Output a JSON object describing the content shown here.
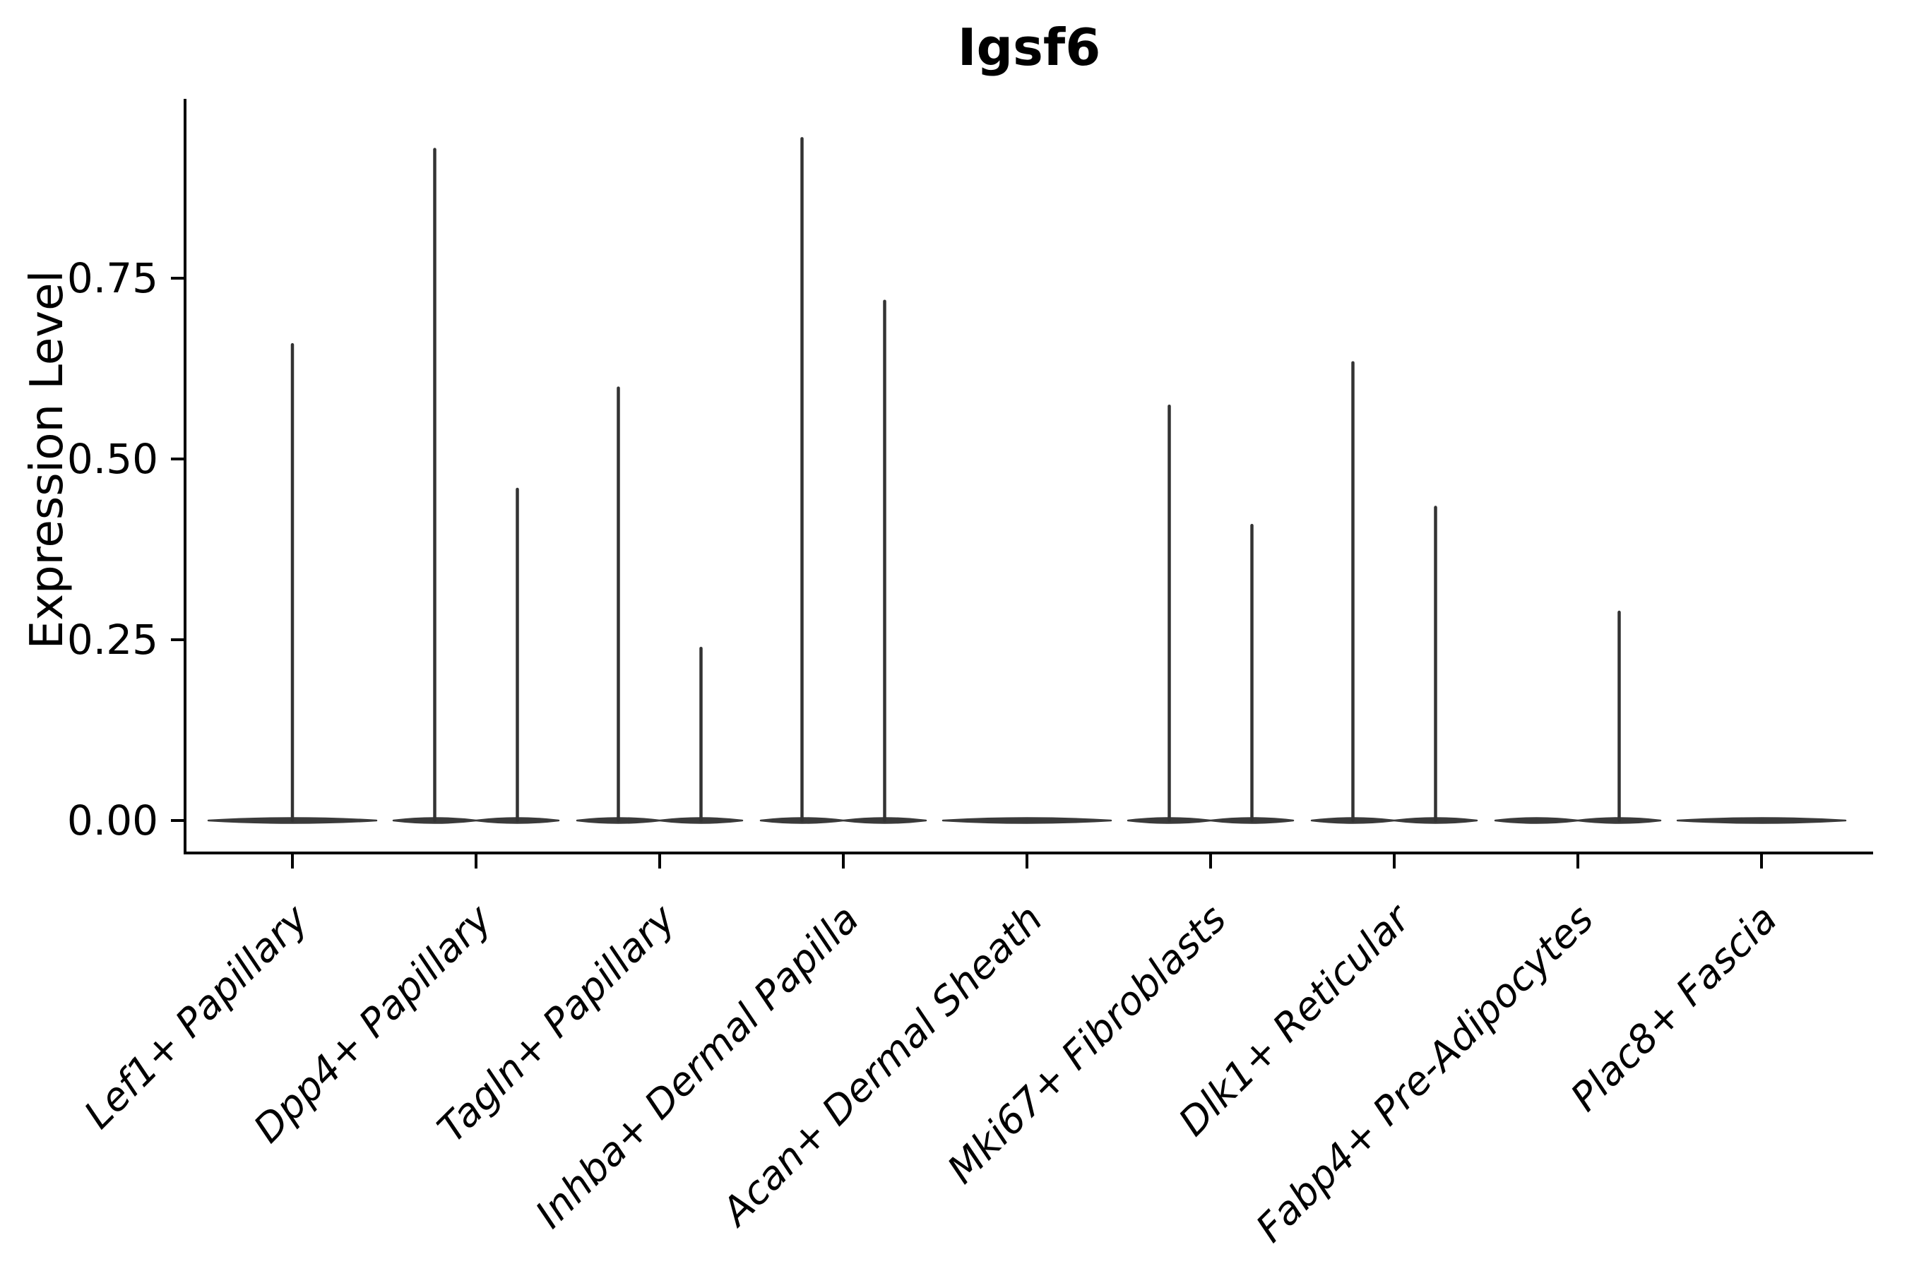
{
  "title": "Igsf6",
  "axes": {
    "ylabel": "Expression Level",
    "ytick_labels": [
      "0.00",
      "0.25",
      "0.50",
      "0.75"
    ]
  },
  "colors": {
    "violin": "#3a3a3a",
    "needle": "#333333",
    "axis": "#000000",
    "text": "#000000"
  },
  "chart_data": {
    "type": "violin",
    "title": "Igsf6",
    "xlabel": "",
    "ylabel": "Expression Level",
    "ylim": [
      0,
      1.0
    ],
    "yticks": [
      0,
      0.25,
      0.5,
      0.75
    ],
    "ytick_labels": [
      "0.00",
      "0.25",
      "0.50",
      "0.75"
    ],
    "grid": false,
    "legend": "none",
    "description": "Violin plot of Igsf6 expression per fibroblast cluster; expression is near zero in all clusters, violins collapse to a flat base at 0 with thin needles up to the max expressing cell. Several categories contain two side-by-side violins (two groups); Lef1+, Acan+ and Plac8+ show a single full-width violin.",
    "categories": [
      {
        "label": "Lef1+ Papillary",
        "violins": [
          {
            "slot": "full",
            "max": 0.66
          }
        ]
      },
      {
        "label": "Dpp4+ Papillary",
        "violins": [
          {
            "slot": "left",
            "max": 0.93
          },
          {
            "slot": "right",
            "max": 0.46
          }
        ]
      },
      {
        "label": "Tagln+ Papillary",
        "violins": [
          {
            "slot": "left",
            "max": 0.6
          },
          {
            "slot": "right",
            "max": 0.24
          }
        ]
      },
      {
        "label": "Inhba+ Dermal Papilla",
        "violins": [
          {
            "slot": "left",
            "max": 0.945
          },
          {
            "slot": "right",
            "max": 0.72
          }
        ]
      },
      {
        "label": "Acan+ Dermal Sheath",
        "violins": [
          {
            "slot": "full",
            "max": 0
          }
        ]
      },
      {
        "label": "Mki67+ Fibroblasts",
        "violins": [
          {
            "slot": "left",
            "max": 0.575
          },
          {
            "slot": "right",
            "max": 0.41
          }
        ]
      },
      {
        "label": "Dlk1+ Reticular",
        "violins": [
          {
            "slot": "left",
            "max": 0.635
          },
          {
            "slot": "right",
            "max": 0.435
          }
        ]
      },
      {
        "label": "Fabp4+ Pre-Adipocytes",
        "violins": [
          {
            "slot": "left",
            "max": 0
          },
          {
            "slot": "right",
            "max": 0.29
          }
        ]
      },
      {
        "label": "Plac8+ Fascia",
        "violins": [
          {
            "slot": "full",
            "max": 0
          }
        ]
      }
    ]
  }
}
